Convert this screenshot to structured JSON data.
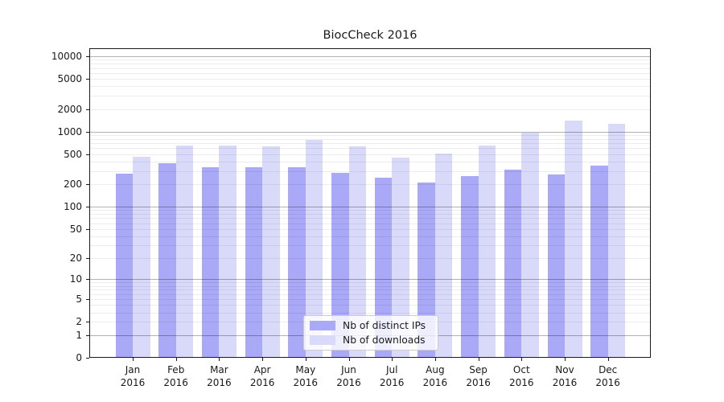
{
  "title": "BiocCheck 2016",
  "legend": {
    "position": "lower center",
    "items": [
      {
        "label": "Nb of distinct IPs",
        "color": "#a9a9f7"
      },
      {
        "label": "Nb of downloads",
        "color": "#d9d9fa"
      }
    ]
  },
  "chart_data": {
    "type": "bar",
    "title": "BiocCheck 2016",
    "categories": [
      "Jan",
      "Feb",
      "Mar",
      "Apr",
      "May",
      "Jun",
      "Jul",
      "Aug",
      "Sep",
      "Oct",
      "Nov",
      "Dec"
    ],
    "category_year": "2016",
    "series": [
      {
        "name": "Nb of distinct IPs",
        "color": "#a9a9f7",
        "values": [
          275,
          380,
          335,
          335,
          340,
          285,
          245,
          210,
          255,
          310,
          270,
          350
        ]
      },
      {
        "name": "Nb of downloads",
        "color": "#d9d9fa",
        "values": [
          460,
          650,
          660,
          640,
          780,
          645,
          455,
          510,
          660,
          970,
          1400,
          1280
        ]
      }
    ],
    "xlabel": "",
    "ylabel": "",
    "yscale": "log1p",
    "ylim": [
      0,
      10000
    ],
    "ytick_values": [
      0,
      1,
      2,
      5,
      10,
      20,
      50,
      100,
      200,
      500,
      1000,
      2000,
      5000,
      10000
    ],
    "ytick_labels": [
      "0",
      "1",
      "2",
      "5",
      "10",
      "20",
      "50",
      "100",
      "200",
      "500",
      "1000",
      "2000",
      "5000",
      "10000"
    ],
    "grid": "on",
    "legend_position": "lower center",
    "colors": {
      "axis": "#1a1a1a",
      "grid_major": "#bdbdbd",
      "grid_minor": "#ececec",
      "background": "#ffffff"
    }
  }
}
